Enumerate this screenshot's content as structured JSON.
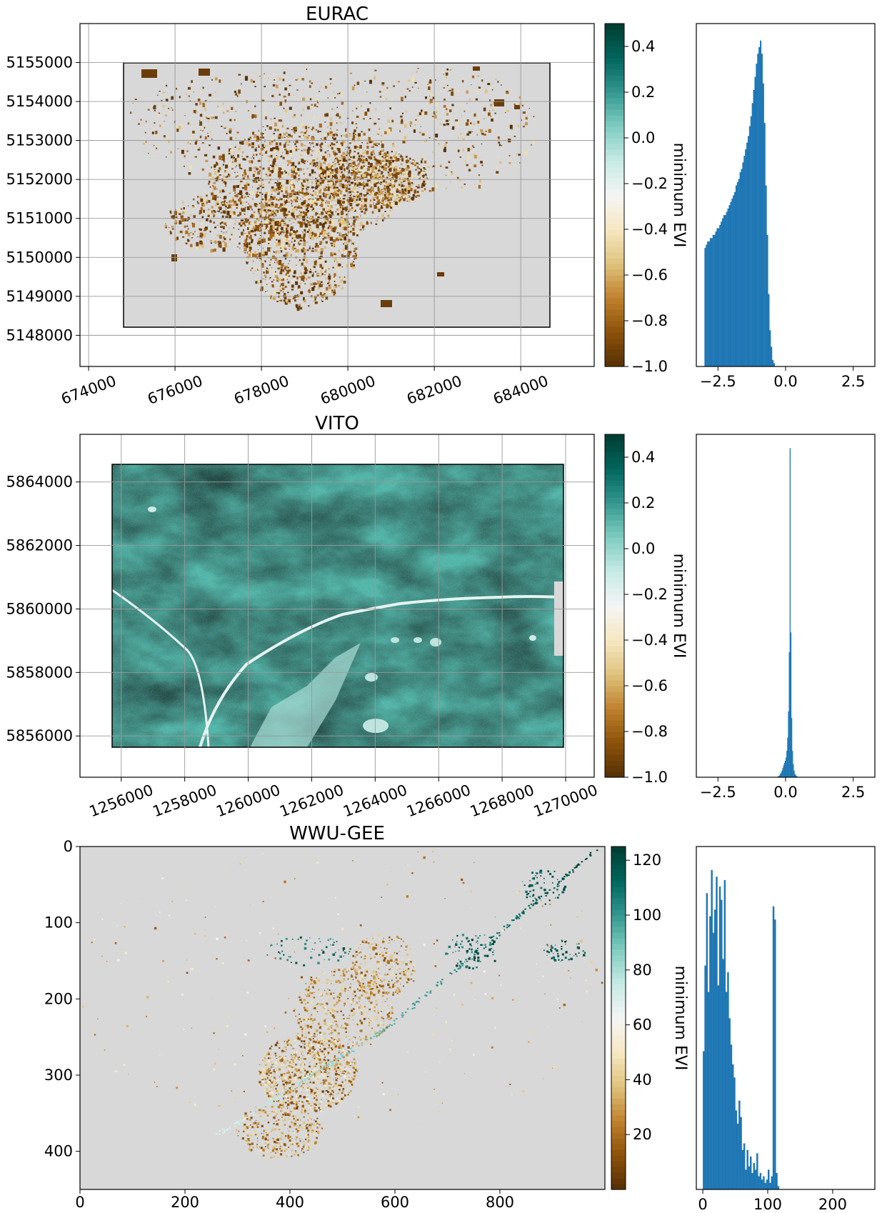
{
  "figure": {
    "background": "#ffffff",
    "nodata_color": "#d8d8d8",
    "hist_color": "#1f77b4",
    "colormap": "BrBG",
    "colormap_stops": [
      "#543005",
      "#8c510a",
      "#bf812d",
      "#dfc27d",
      "#f6e8c3",
      "#f5f5f5",
      "#c7eae5",
      "#80cdc1",
      "#35978f",
      "#01665e",
      "#003c30"
    ]
  },
  "chart_data": [
    {
      "type": "heatmap",
      "title": "EURAC",
      "xlabel": "",
      "ylabel": "",
      "xlim": [
        673800,
        685700
      ],
      "ylim": [
        5147200,
        5156000
      ],
      "x_ticks": [
        674000,
        676000,
        678000,
        680000,
        682000,
        684000
      ],
      "y_ticks": [
        5148000,
        5149000,
        5150000,
        5151000,
        5152000,
        5153000,
        5154000,
        5155000
      ],
      "x_ticklabels": [
        "674000",
        "676000",
        "678000",
        "680000",
        "682000",
        "684000"
      ],
      "y_ticklabels": [
        "5148000",
        "5149000",
        "5150000",
        "5151000",
        "5152000",
        "5153000",
        "5154000",
        "5155000"
      ],
      "extent": [
        674900,
        684600,
        5148150,
        5154950
      ],
      "grid": true,
      "map_style": "sparse_brown",
      "colorbar": {
        "label": "minimum EVI",
        "range": [
          -1.0,
          0.5
        ],
        "ticks": [
          -1.0,
          -0.8,
          -0.6,
          -0.4,
          -0.2,
          0.0,
          0.2,
          0.4
        ],
        "ticklabels": [
          "−1.0",
          "−0.8",
          "−0.6",
          "−0.4",
          "−0.2",
          "0.0",
          "0.2",
          "0.4"
        ]
      },
      "histogram": {
        "xlim": [
          -3.3,
          3.3
        ],
        "x_ticks": [
          -2.5,
          0.0,
          2.5
        ],
        "x_ticklabels": [
          "−2.5",
          "0.0",
          "2.5"
        ],
        "bin_start": -3.0,
        "bin_width": 0.05,
        "counts": [
          0.36,
          0.37,
          0.38,
          0.38,
          0.39,
          0.39,
          0.4,
          0.4,
          0.41,
          0.42,
          0.42,
          0.43,
          0.44,
          0.45,
          0.46,
          0.46,
          0.47,
          0.48,
          0.49,
          0.5,
          0.51,
          0.52,
          0.53,
          0.55,
          0.56,
          0.57,
          0.59,
          0.6,
          0.62,
          0.64,
          0.66,
          0.68,
          0.7,
          0.73,
          0.76,
          0.8,
          0.84,
          0.88,
          0.92,
          0.95,
          0.97,
          0.99,
          0.95,
          0.86,
          0.74,
          0.55,
          0.4,
          0.22,
          0.11,
          0.06,
          0.02,
          0.01
        ]
      }
    },
    {
      "type": "heatmap",
      "title": "VITO",
      "xlabel": "",
      "ylabel": "",
      "xlim": [
        1254700,
        1270900
      ],
      "ylim": [
        5854700,
        5865500
      ],
      "x_ticks": [
        1256000,
        1258000,
        1260000,
        1262000,
        1264000,
        1266000,
        1268000,
        1270000
      ],
      "y_ticks": [
        5856000,
        5858000,
        5860000,
        5862000,
        5864000
      ],
      "x_ticklabels": [
        "1256000",
        "1258000",
        "1260000",
        "1262000",
        "1264000",
        "1266000",
        "1268000",
        "1270000"
      ],
      "y_ticklabels": [
        "5856000",
        "5858000",
        "5860000",
        "5862000",
        "5864000"
      ],
      "extent": [
        1255600,
        1269800,
        5855100,
        5864500
      ],
      "grid": true,
      "map_style": "dense_teal",
      "colorbar": {
        "label": "minimum EVI",
        "range": [
          -1.0,
          0.5
        ],
        "ticks": [
          -1.0,
          -0.8,
          -0.6,
          -0.4,
          -0.2,
          0.0,
          0.2,
          0.4
        ],
        "ticklabels": [
          "−1.0",
          "−0.8",
          "−0.6",
          "−0.4",
          "−0.2",
          "0.0",
          "0.2",
          "0.4"
        ]
      },
      "histogram": {
        "xlim": [
          -3.3,
          3.3
        ],
        "x_ticks": [
          -2.5,
          0.0,
          2.5
        ],
        "x_ticklabels": [
          "−2.5",
          "0.0",
          "2.5"
        ],
        "bin_start": -0.3,
        "bin_width": 0.03,
        "counts": [
          0.002,
          0.004,
          0.006,
          0.01,
          0.014,
          0.02,
          0.028,
          0.036,
          0.044,
          0.05,
          0.06,
          0.08,
          0.12,
          0.2,
          0.38,
          1.0,
          0.44,
          0.18,
          0.08,
          0.04,
          0.02,
          0.01,
          0.006,
          0.004,
          0.002,
          0.001
        ]
      }
    },
    {
      "type": "heatmap",
      "title": "WWU-GEE",
      "xlabel": "",
      "ylabel": "",
      "xlim": [
        0,
        1000
      ],
      "ylim": [
        0,
        450
      ],
      "x_ticks": [
        0,
        200,
        400,
        600,
        800
      ],
      "y_ticks": [
        0,
        100,
        200,
        300,
        400
      ],
      "x_ticklabels": [
        "0",
        "200",
        "400",
        "600",
        "800"
      ],
      "y_ticklabels": [
        "0",
        "100",
        "200",
        "300",
        "400"
      ],
      "y_inverted": true,
      "grid": false,
      "map_style": "sparse_gee",
      "colorbar": {
        "label": "minimum EVI",
        "range": [
          0,
          125
        ],
        "ticks": [
          20,
          40,
          60,
          80,
          100,
          120
        ],
        "ticklabels": [
          "20",
          "40",
          "60",
          "80",
          "100",
          "120"
        ]
      },
      "histogram": {
        "xlim": [
          -10,
          265
        ],
        "x_ticks": [
          0,
          100,
          200
        ],
        "x_ticklabels": [
          "0",
          "100",
          "200"
        ],
        "bin_start": 0,
        "bin_width": 2.5,
        "counts": [
          0.42,
          0.68,
          0.9,
          0.6,
          0.83,
          0.97,
          0.78,
          0.85,
          0.95,
          0.62,
          0.92,
          0.88,
          0.7,
          0.94,
          0.6,
          0.66,
          0.52,
          0.44,
          0.38,
          0.34,
          0.24,
          0.2,
          0.27,
          0.22,
          0.12,
          0.14,
          0.06,
          0.12,
          0.07,
          0.1,
          0.05,
          0.08,
          0.06,
          0.11,
          0.04,
          0.05,
          0.03,
          0.04,
          0.02,
          0.03,
          0.06,
          0.02,
          0.04,
          0.86,
          0.82,
          0.05,
          0.01
        ]
      }
    }
  ]
}
